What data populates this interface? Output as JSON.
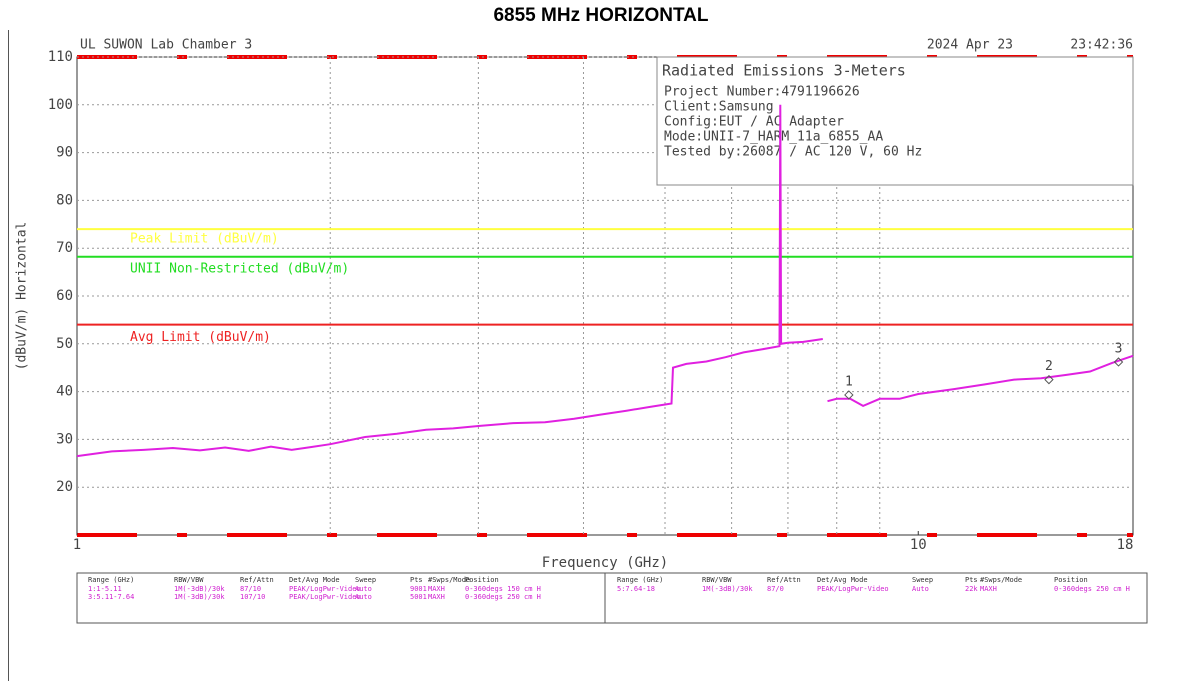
{
  "chart_data": {
    "type": "line",
    "title": "6855 MHz HORIZONTAL",
    "header_left": "UL SUWON Lab Chamber 3",
    "date": "2024 Apr 23",
    "time": "23:42:36",
    "info_title": "Radiated Emissions 3-Meters",
    "info_lines": [
      "Project Number:4791196626",
      "Client:Samsung",
      "Config:EUT / AC Adapter",
      "Mode:UNII-7_HARM_11a_6855_AA",
      "Tested by:26087 / AC 120 V, 60 Hz"
    ],
    "x_label": "Frequency (GHz)",
    "y_label": "(dBuV/m) Horizontal",
    "xscale": "log",
    "xlim": [
      1,
      18
    ],
    "xticks": [
      1,
      10,
      18
    ],
    "x_gridlines": [
      2,
      3,
      4,
      5,
      6,
      7,
      8,
      9
    ],
    "ylim": [
      10,
      110
    ],
    "yticks": [
      20,
      30,
      40,
      50,
      60,
      70,
      80,
      90,
      100,
      110
    ],
    "grid": true,
    "limit_lines": [
      {
        "name": "Peak Limit (dBuV/m)",
        "color": "#ffff40",
        "value": 74
      },
      {
        "name": "UNII Non-Restricted (dBuV/m)",
        "color": "#22dd22",
        "value": 68.2
      },
      {
        "name": "Avg Limit (dBuV/m)",
        "color": "#ee2222",
        "value": 54
      }
    ],
    "trace": {
      "color": "#e020e0",
      "x": [
        1,
        1.1,
        1.2,
        1.3,
        1.4,
        1.5,
        1.6,
        1.7,
        1.8,
        1.9,
        2.0,
        2.2,
        2.4,
        2.6,
        2.8,
        3.0,
        3.3,
        3.6,
        3.9,
        4.2,
        4.5,
        4.8,
        5.09,
        5.11,
        5.3,
        5.6,
        5.9,
        6.2,
        6.5,
        6.84,
        6.855,
        6.87,
        7.0,
        7.3,
        7.7,
        7.72,
        7.8,
        8.0,
        8.3,
        8.6,
        9.0,
        9.5,
        10,
        11,
        12,
        13,
        14,
        15,
        16,
        17,
        18
      ],
      "values": [
        26.5,
        27.5,
        27.8,
        28.2,
        27.7,
        28.3,
        27.6,
        28.5,
        27.8,
        28.4,
        29,
        30.5,
        31.2,
        32,
        32.3,
        32.8,
        33.4,
        33.6,
        34.3,
        35.2,
        36,
        36.8,
        37.5,
        45,
        45.8,
        46.3,
        47.2,
        48.2,
        48.8,
        49.5,
        100,
        50,
        50.2,
        50.4,
        51,
        null,
        38,
        38.5,
        38.5,
        37,
        38.5,
        38.5,
        39.5,
        40.5,
        41.5,
        42.5,
        42.8,
        43.5,
        44.2,
        46,
        47.5
      ]
    },
    "markers": [
      {
        "label": "1",
        "x": 8.27,
        "y": 39.3
      },
      {
        "label": "2",
        "x": 14.3,
        "y": 42.5
      },
      {
        "label": "3",
        "x": 17.3,
        "y": 46.2
      }
    ],
    "tables": [
      {
        "columns": [
          "Range (GHz)",
          "RBW/VBW",
          "Ref/Attn",
          "Det/Avg Mode",
          "Sweep",
          "Pts",
          "#Swps/Mode",
          "Position"
        ],
        "rows": [
          [
            "1:1-5.11",
            "1M(-3dB)/30k",
            "87/10",
            "PEAK/LogPwr-Video",
            "Auto",
            "9001",
            "MAXH",
            "0-360degs 150 cm H"
          ],
          [
            "3:5.11-7.64",
            "1M(-3dB)/30k",
            "107/10",
            "PEAK/LogPwr-Video",
            "Auto",
            "5001",
            "MAXH",
            "0-360degs 250 cm H"
          ]
        ]
      },
      {
        "columns": [
          "Range (GHz)",
          "RBW/VBW",
          "Ref/Attn",
          "Det/Avg Mode",
          "Sweep",
          "Pts",
          "#Swps/Mode",
          "Position"
        ],
        "rows": [
          [
            "5:7.64-18",
            "1M(-3dB)/30k",
            "87/0",
            "PEAK/LogPwr-Video",
            "Auto",
            "22k",
            "MAXH",
            "0-360degs 250 cm H"
          ]
        ]
      }
    ]
  }
}
